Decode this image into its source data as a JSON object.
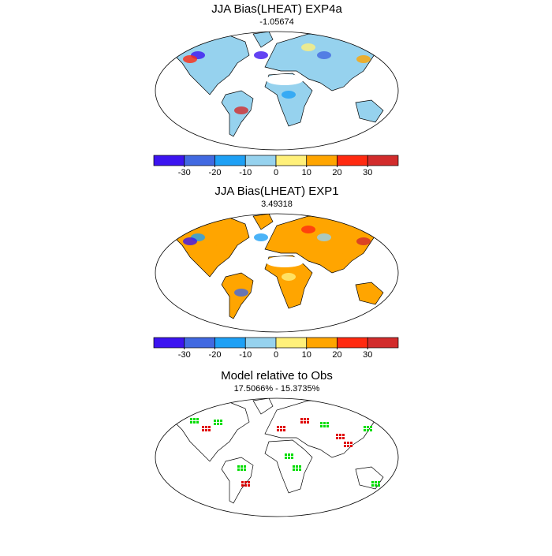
{
  "panels": [
    {
      "title": "JJA Bias(LHEAT) EXP4a",
      "subtitle": "-1.05674",
      "land_color": "#96d2ee",
      "colorbar": {
        "colors": [
          "#3c14f0",
          "#4169e1",
          "#1ea0f5",
          "#96d2ee",
          "#fff07a",
          "#ffa500",
          "#ff2a10",
          "#d22c2c"
        ],
        "levels": [
          -30,
          -20,
          -10,
          0,
          10,
          20,
          30
        ]
      }
    },
    {
      "title": "JJA Bias(LHEAT) EXP1",
      "subtitle": "3.49318",
      "land_color": "#ffa500",
      "colorbar": {
        "colors": [
          "#3c14f0",
          "#4169e1",
          "#1ea0f5",
          "#96d2ee",
          "#fff07a",
          "#ffa500",
          "#ff2a10",
          "#d22c2c"
        ],
        "levels": [
          -30,
          -20,
          -10,
          0,
          10,
          20,
          30
        ]
      }
    },
    {
      "title": "Model relative to Obs",
      "subtitle": "17.5066% - 15.3735%",
      "land_color": "#ffffff"
    }
  ]
}
